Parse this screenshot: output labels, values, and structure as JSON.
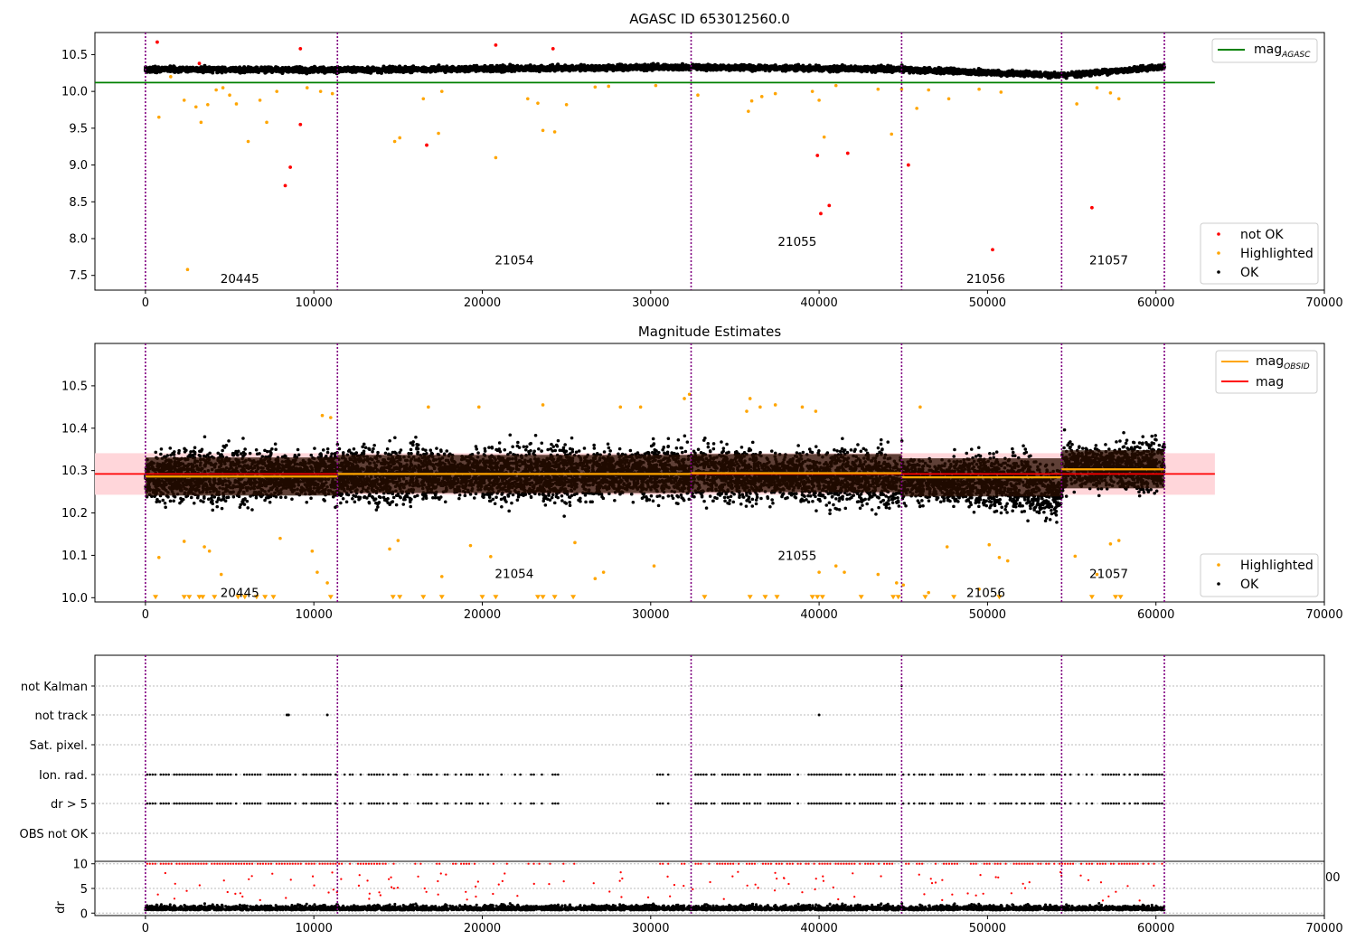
{
  "chart_data": [
    {
      "type": "scatter",
      "title": "AGASC ID 653012560.0",
      "xlim": [
        -3000,
        70000
      ],
      "ylim": [
        7.3,
        10.8
      ],
      "x_ticks": [
        0,
        10000,
        20000,
        30000,
        40000,
        50000,
        60000,
        70000
      ],
      "y_ticks": [
        7.5,
        8.0,
        8.5,
        9.0,
        9.5,
        10.0,
        10.5
      ],
      "mag_agasc": 10.12,
      "mag_agasc_xrange": [
        -3000,
        63500
      ],
      "obs_boundaries": [
        0,
        11400,
        32400,
        44900,
        54400,
        60500
      ],
      "obsids": [
        {
          "label": "20445",
          "x": 5600,
          "y": 7.45
        },
        {
          "label": "21054",
          "x": 21900,
          "y": 7.7
        },
        {
          "label": "21055",
          "x": 38700,
          "y": 7.95
        },
        {
          "label": "21056",
          "x": 49900,
          "y": 7.45
        },
        {
          "label": "21057",
          "x": 57200,
          "y": 7.7
        }
      ],
      "legend_upper": [
        "mag_AGASC"
      ],
      "legend_lower": [
        "not OK",
        "Highlighted",
        "OK"
      ],
      "series": [
        {
          "name": "OK",
          "color": "#000000",
          "description": "dense band of points around 10.28-10.35 across x 0-60500",
          "band": [
            [
              0,
              10.3
            ],
            [
              11400,
              10.29
            ],
            [
              21000,
              10.31
            ],
            [
              32400,
              10.33
            ],
            [
              44900,
              10.3
            ],
            [
              52000,
              10.24
            ],
            [
              54400,
              10.22
            ],
            [
              60500,
              10.33
            ]
          ]
        },
        {
          "name": "Highlighted",
          "color": "#ffa500",
          "points": [
            [
              800,
              9.65
            ],
            [
              1500,
              10.2
            ],
            [
              2300,
              9.88
            ],
            [
              2500,
              7.58
            ],
            [
              3000,
              9.79
            ],
            [
              3300,
              9.58
            ],
            [
              3700,
              9.82
            ],
            [
              4200,
              10.02
            ],
            [
              4600,
              10.05
            ],
            [
              5000,
              9.95
            ],
            [
              5400,
              9.83
            ],
            [
              6100,
              9.32
            ],
            [
              6800,
              9.88
            ],
            [
              7200,
              9.58
            ],
            [
              7800,
              10.0
            ],
            [
              9600,
              10.05
            ],
            [
              10400,
              10.0
            ],
            [
              11100,
              9.97
            ],
            [
              14800,
              9.32
            ],
            [
              15100,
              9.37
            ],
            [
              16500,
              9.9
            ],
            [
              17400,
              9.43
            ],
            [
              17600,
              10.0
            ],
            [
              20800,
              9.1
            ],
            [
              22700,
              9.9
            ],
            [
              23300,
              9.84
            ],
            [
              23600,
              9.47
            ],
            [
              24300,
              9.45
            ],
            [
              25000,
              9.82
            ],
            [
              26700,
              10.06
            ],
            [
              27500,
              10.07
            ],
            [
              30300,
              10.08
            ],
            [
              32800,
              9.95
            ],
            [
              35800,
              9.73
            ],
            [
              36000,
              9.87
            ],
            [
              36600,
              9.93
            ],
            [
              37400,
              9.97
            ],
            [
              39600,
              10.0
            ],
            [
              40000,
              9.88
            ],
            [
              40300,
              9.38
            ],
            [
              41000,
              10.08
            ],
            [
              43500,
              10.03
            ],
            [
              44300,
              9.42
            ],
            [
              44900,
              10.03
            ],
            [
              45800,
              9.77
            ],
            [
              46500,
              10.02
            ],
            [
              47700,
              9.9
            ],
            [
              49500,
              10.03
            ],
            [
              50800,
              9.99
            ],
            [
              55300,
              9.83
            ],
            [
              56500,
              10.05
            ],
            [
              57300,
              9.98
            ],
            [
              57800,
              9.9
            ]
          ]
        },
        {
          "name": "not OK",
          "color": "#ff0000",
          "points": [
            [
              700,
              10.67
            ],
            [
              3200,
              10.38
            ],
            [
              8300,
              8.72
            ],
            [
              8600,
              8.97
            ],
            [
              9200,
              10.58
            ],
            [
              9200,
              9.55
            ],
            [
              16700,
              9.27
            ],
            [
              20800,
              10.63
            ],
            [
              24200,
              10.58
            ],
            [
              39900,
              9.13
            ],
            [
              40100,
              8.34
            ],
            [
              40600,
              8.45
            ],
            [
              41700,
              9.16
            ],
            [
              45300,
              9.0
            ],
            [
              50300,
              7.85
            ],
            [
              56200,
              8.42
            ]
          ]
        }
      ]
    },
    {
      "type": "scatter",
      "title": "Magnitude Estimates",
      "xlim": [
        -3000,
        70000
      ],
      "ylim": [
        9.99,
        10.6
      ],
      "x_ticks": [
        0,
        10000,
        20000,
        30000,
        40000,
        50000,
        60000,
        70000
      ],
      "y_ticks": [
        10.0,
        10.1,
        10.2,
        10.3,
        10.4,
        10.5
      ],
      "mag": 10.292,
      "mag_band": [
        10.243,
        10.341
      ],
      "mag_obsid": [
        {
          "x": [
            0,
            11400
          ],
          "mag": 10.286
        },
        {
          "x": [
            11400,
            32400
          ],
          "mag": 10.292
        },
        {
          "x": [
            32400,
            44900
          ],
          "mag": 10.294
        },
        {
          "x": [
            44900,
            54400
          ],
          "mag": 10.284
        },
        {
          "x": [
            54400,
            60500
          ],
          "mag": 10.303
        }
      ],
      "obsids": [
        {
          "label": "20445",
          "x": 5600,
          "y": 10.01
        },
        {
          "label": "21054",
          "x": 21900,
          "y": 10.055
        },
        {
          "label": "21055",
          "x": 38700,
          "y": 10.098
        },
        {
          "label": "21056",
          "x": 49900,
          "y": 10.01
        },
        {
          "label": "21057",
          "x": 57200,
          "y": 10.055
        }
      ],
      "legend_upper": [
        "mag_OBSID",
        "mag"
      ],
      "legend_lower": [
        "Highlighted",
        "OK"
      ]
    },
    {
      "type": "scatter",
      "categories": [
        "not Kalman",
        "not track",
        "Sat. pixel.",
        "Ion. rad.",
        "dr > 5",
        "OBS not OK"
      ],
      "xlim": [
        -3000,
        70000
      ],
      "x_ticks": [
        0,
        10000,
        20000,
        30000,
        40000,
        50000,
        60000,
        70000
      ],
      "flags": {
        "not track": [
          8400,
          8500,
          10800,
          40000
        ],
        "not Kalman": [
          44900
        ]
      },
      "dr_subplot": {
        "ylabel": "dr",
        "y_ticks": [
          0,
          5,
          10
        ],
        "ylim": [
          -0.5,
          10.5
        ]
      }
    }
  ],
  "labels": {
    "top_title": "AGASC ID 653012560.0",
    "mid_title": "Magnitude Estimates",
    "leg_agasc_main": "mag",
    "leg_agasc_sub": "AGASC",
    "leg_notok": "not OK",
    "leg_highlighted": "Highlighted",
    "leg_ok": "OK",
    "leg_obsid_main": "mag",
    "leg_obsid_sub": "OBSID",
    "leg_mag": "mag",
    "leg_mid_highlighted": "Highlighted",
    "leg_mid_ok": "OK",
    "dr_label": "dr",
    "stray_tick": "00"
  },
  "colors": {
    "ok": "#000000",
    "highlighted": "#ffa500",
    "not_ok": "#ff0000",
    "agasc_line": "#008000",
    "mag_line": "#ff0000",
    "mag_band": "#ffd6da",
    "obsid_line": "#ffa500",
    "obs_boundary": "#800080",
    "dark_band": "#2a0e00"
  }
}
